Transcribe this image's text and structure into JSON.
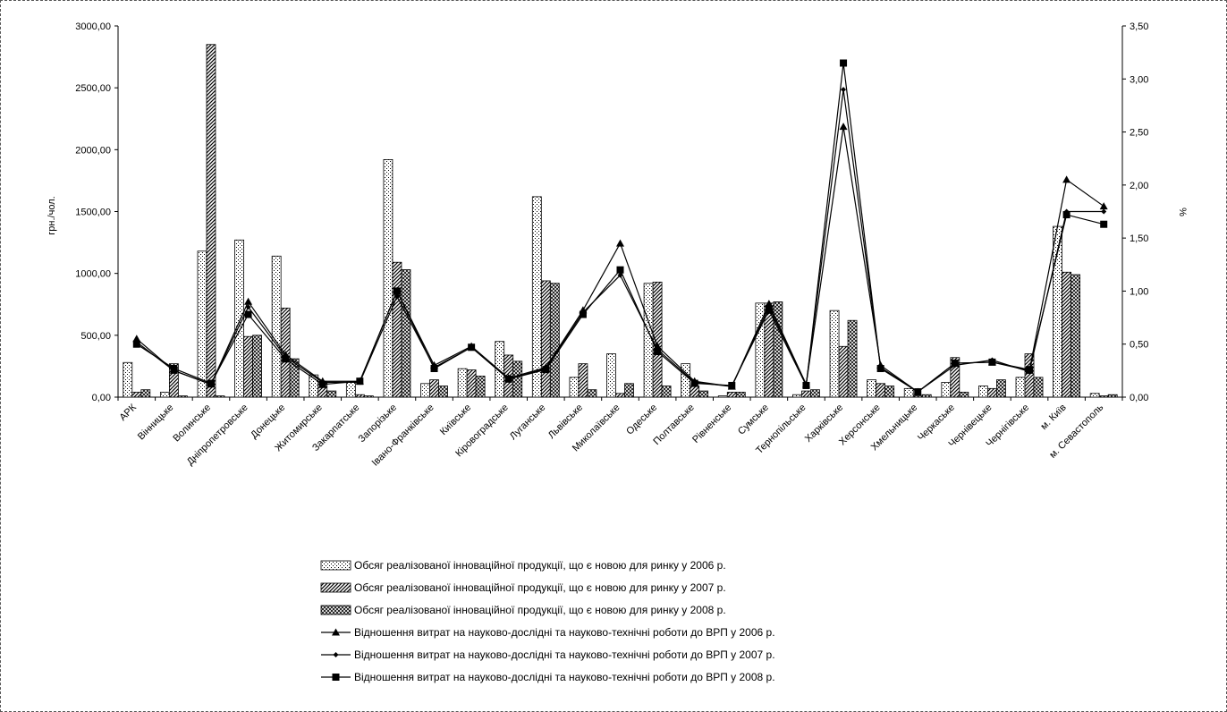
{
  "chart_data": {
    "type": "bar",
    "title": "",
    "ylabel_left": "грн./чол.",
    "ylabel_right": "%",
    "ylim_left": [
      0,
      3000
    ],
    "ylim_right": [
      0,
      3.5
    ],
    "yticks_left": [
      "0,00",
      "500,00",
      "1000,00",
      "1500,00",
      "2000,00",
      "2500,00",
      "3000,00"
    ],
    "yticks_right": [
      "0,00",
      "0,50",
      "1,00",
      "1,50",
      "2,00",
      "2,50",
      "3,00",
      "3,50"
    ],
    "grid": false,
    "legend_position": "bottom",
    "categories": [
      "АРК",
      "Вінницьке",
      "Волинське",
      "Дніпропетровське",
      "Донецьке",
      "Житомирське",
      "Закарпатське",
      "Запорізьке",
      "Івано-Франківське",
      "Київське",
      "Кіровоградське",
      "Луганське",
      "Львівське",
      "Миколаївське",
      "Одеське",
      "Полтавське",
      "Рівненське",
      "Сумське",
      "Тернопільське",
      "Харківське",
      "Херсонське",
      "Хмельницьке",
      "Черкаське",
      "Чернівецьке",
      "Чернігівське",
      "м. Київ",
      "м. Севастополь"
    ],
    "series": [
      {
        "name": "Обсяг реалізованої інноваційної продукції, що є новою для ринку у 2006 р.",
        "kind": "bar",
        "axis": "left",
        "pattern": "dots",
        "values": [
          280,
          40,
          1180,
          1270,
          1140,
          180,
          120,
          1920,
          110,
          230,
          450,
          1620,
          160,
          350,
          920,
          270,
          10,
          760,
          20,
          700,
          140,
          70,
          120,
          90,
          160,
          1380,
          30
        ]
      },
      {
        "name": "Обсяг реалізованої інноваційної продукції, що є новою для ринку у 2007 р.",
        "kind": "bar",
        "axis": "left",
        "pattern": "diagonal",
        "values": [
          40,
          270,
          2850,
          490,
          720,
          120,
          20,
          1090,
          140,
          220,
          340,
          940,
          270,
          30,
          930,
          90,
          40,
          760,
          50,
          410,
          110,
          10,
          320,
          70,
          350,
          1010,
          10
        ]
      },
      {
        "name": "Обсяг реалізованої інноваційної продукції, що є новою для ринку у 2008 р.",
        "kind": "bar",
        "axis": "left",
        "pattern": "crosshatch",
        "values": [
          60,
          10,
          10,
          500,
          310,
          50,
          10,
          1030,
          90,
          170,
          290,
          920,
          60,
          110,
          90,
          50,
          40,
          770,
          60,
          620,
          90,
          20,
          40,
          140,
          160,
          990,
          20
        ]
      },
      {
        "name": "Відношення витрат на науково-дослідні та науково-технічні роботи до ВРП у 2006 р.",
        "kind": "line",
        "axis": "right",
        "marker": "triangle",
        "values": [
          0.55,
          0.25,
          0.12,
          0.9,
          0.4,
          0.15,
          0.15,
          1.0,
          0.3,
          0.48,
          0.18,
          0.28,
          0.82,
          1.45,
          0.48,
          0.15,
          0.1,
          0.88,
          0.12,
          2.55,
          0.3,
          0.05,
          0.32,
          0.33,
          0.25,
          2.05,
          1.8
        ]
      },
      {
        "name": "Відношення витрат на науково-дослідні та науково-технічні роботи до ВРП у 2007 р.",
        "kind": "line",
        "axis": "right",
        "marker": "diamond",
        "values": [
          0.52,
          0.25,
          0.12,
          0.85,
          0.38,
          0.14,
          0.14,
          0.95,
          0.28,
          0.47,
          0.17,
          0.27,
          0.8,
          1.15,
          0.45,
          0.14,
          0.1,
          0.85,
          0.12,
          2.9,
          0.28,
          0.05,
          0.3,
          0.35,
          0.24,
          1.75,
          1.75
        ]
      },
      {
        "name": "Відношення витрат на науково-дослідні та науково-технічні роботи до ВРП у 2008 р.",
        "kind": "line",
        "axis": "right",
        "marker": "square",
        "values": [
          0.5,
          0.27,
          0.13,
          0.78,
          0.36,
          0.12,
          0.15,
          1.0,
          0.27,
          0.47,
          0.17,
          0.26,
          0.78,
          1.2,
          0.43,
          0.13,
          0.11,
          0.82,
          0.11,
          3.15,
          0.27,
          0.05,
          0.32,
          0.33,
          0.26,
          1.72,
          1.63
        ]
      }
    ]
  }
}
